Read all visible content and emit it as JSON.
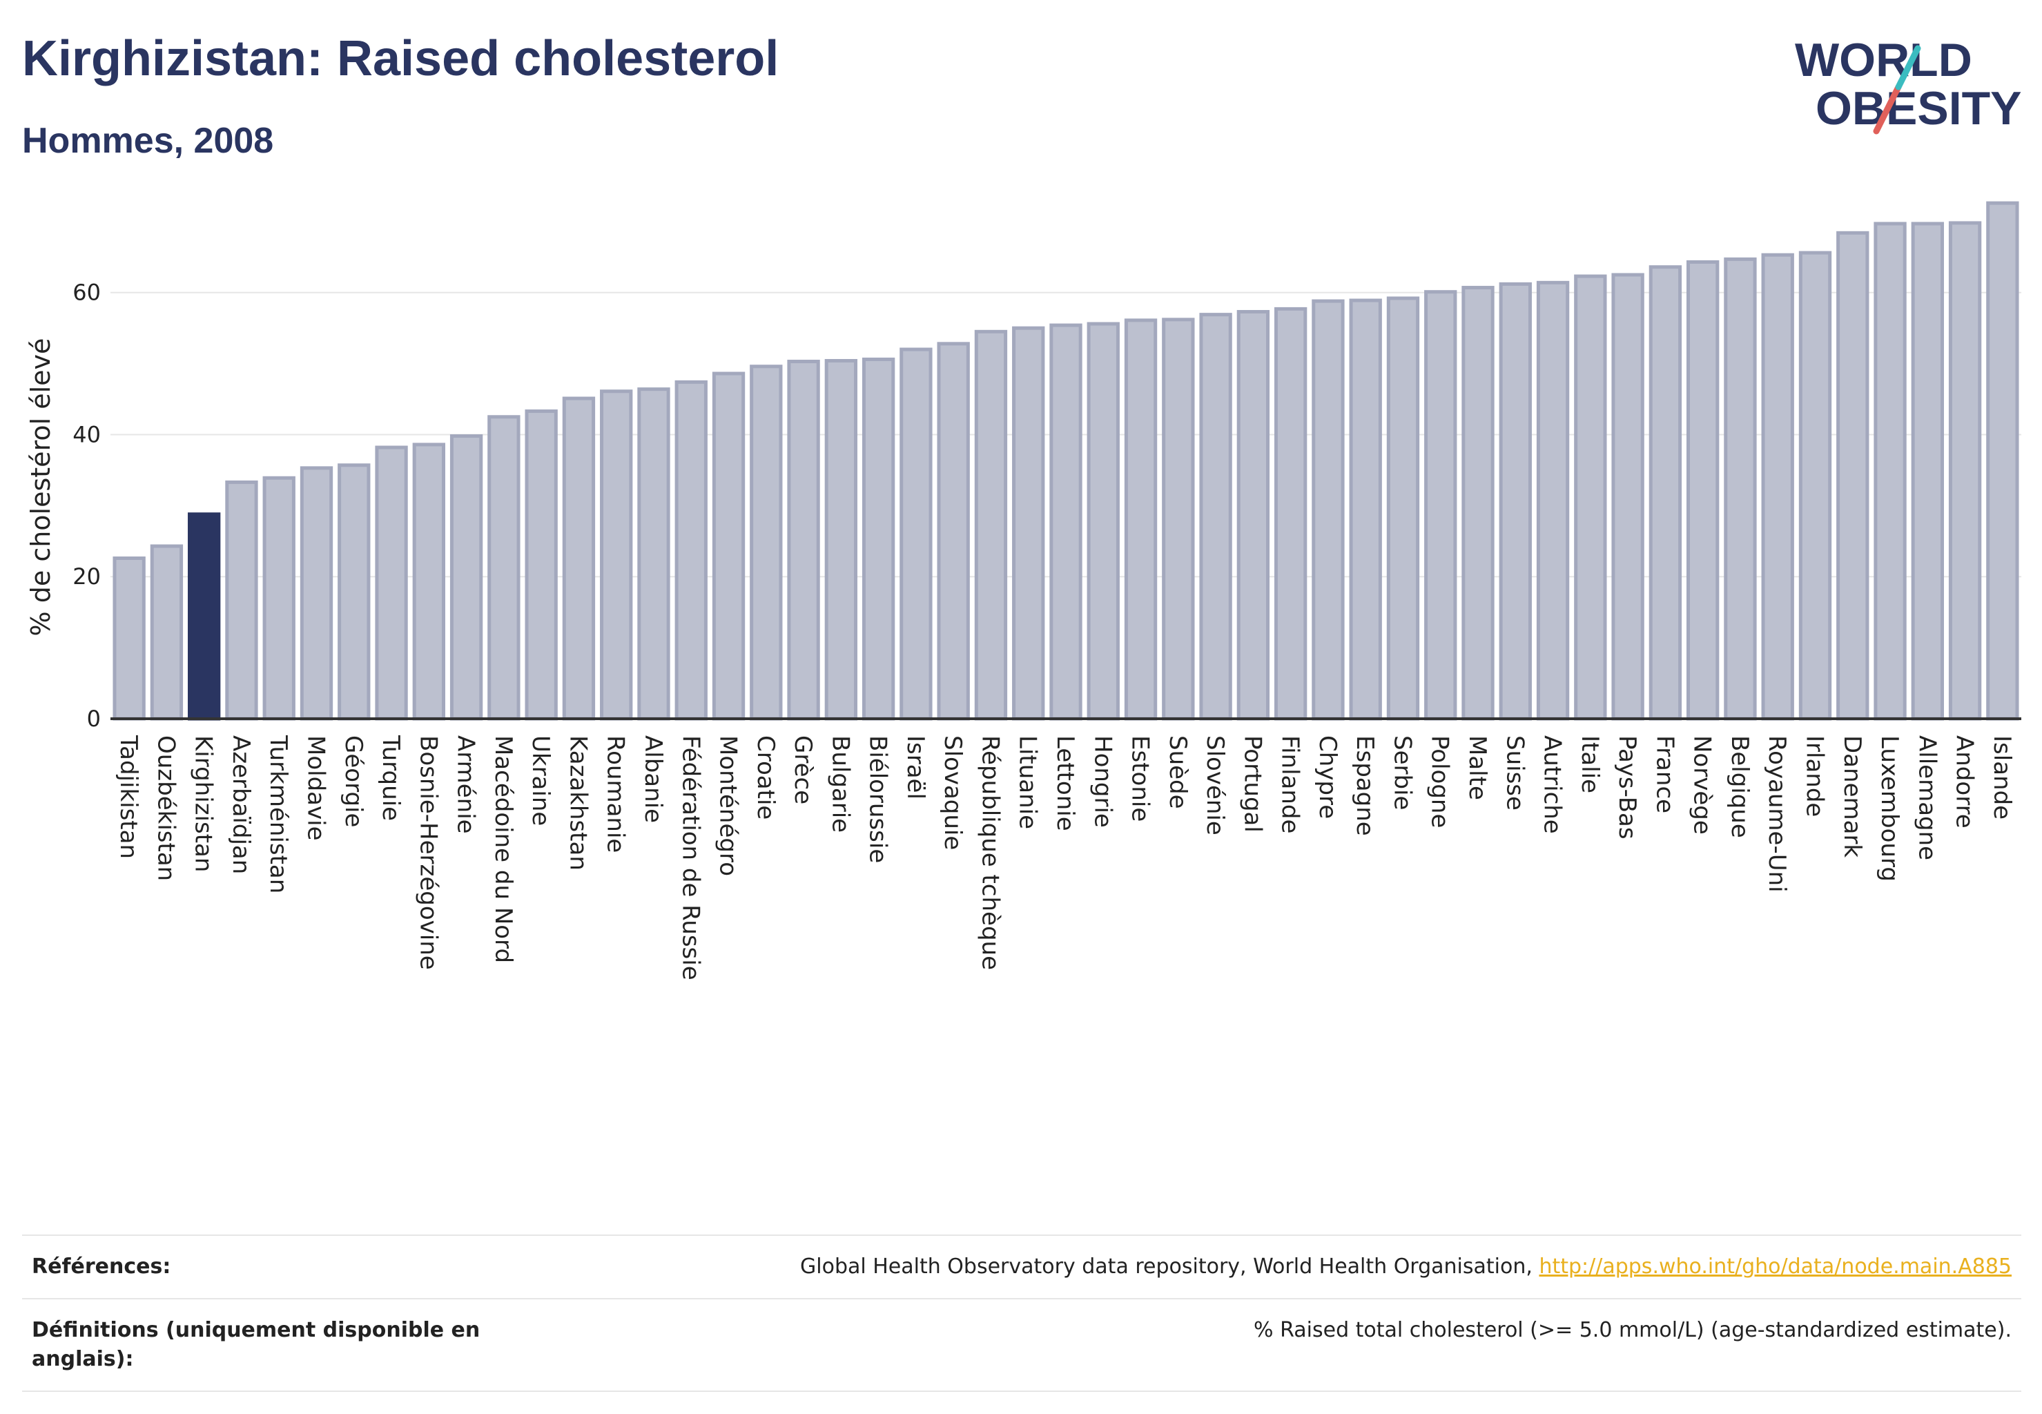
{
  "header": {
    "title": "Kirghizistan: Raised cholesterol",
    "subtitle": "Hommes, 2008"
  },
  "logo": {
    "line1": "WORLD",
    "line2": "OBESITY",
    "colors": [
      "#2a3561",
      "#e0605a",
      "#3bbcc0"
    ]
  },
  "footer": {
    "references_label": "Références:",
    "references_text": "Global Health Observatory data repository, World Health Organisation, ",
    "references_link": "http://apps.who.int/gho/data/node.main.A885",
    "definitions_label": "Définitions (uniquement disponible en anglais):",
    "definitions_text": "% Raised total cholesterol (>= 5.0 mmol/L) (age-standardized estimate)."
  },
  "chart_data": {
    "type": "bar",
    "title": "Kirghizistan: Raised cholesterol",
    "subtitle": "Hommes, 2008",
    "ylabel": "% de cholestérol élevé",
    "ylim": [
      0,
      73
    ],
    "yticks": [
      0,
      20,
      40,
      60
    ],
    "grid": true,
    "highlight": "Kirghizistan",
    "colors": {
      "bar": "#bcc0cf",
      "bar_edge": "#a3a8bd",
      "highlight": "#2a3561"
    },
    "categories": [
      "Tadjikistan",
      "Ouzbékistan",
      "Kirghizistan",
      "Azerbaïdjan",
      "Turkménistan",
      "Moldavie",
      "Géorgie",
      "Turquie",
      "Bosnie-Herzégovine",
      "Arménie",
      "Macédoine du Nord",
      "Ukraine",
      "Kazakhstan",
      "Roumanie",
      "Albanie",
      "Fédération de Russie",
      "Monténégro",
      "Croatie",
      "Grèce",
      "Bulgarie",
      "Biélorussie",
      "Israël",
      "Slovaquie",
      "République tchèque",
      "Lituanie",
      "Lettonie",
      "Hongrie",
      "Estonie",
      "Suède",
      "Slovénie",
      "Portugal",
      "Finlande",
      "Chypre",
      "Espagne",
      "Serbie",
      "Pologne",
      "Malte",
      "Suisse",
      "Autriche",
      "Italie",
      "Pays-Bas",
      "France",
      "Norvège",
      "Belgique",
      "Royaume-Uni",
      "Irlande",
      "Danemark",
      "Luxembourg",
      "Allemagne",
      "Andorre",
      "Islande"
    ],
    "values": [
      22.6,
      24.3,
      28.8,
      33.3,
      33.9,
      35.3,
      35.7,
      38.2,
      38.6,
      39.8,
      42.5,
      43.3,
      45.1,
      46.1,
      46.4,
      47.4,
      48.6,
      49.6,
      50.3,
      50.4,
      50.6,
      52.0,
      52.8,
      54.5,
      55.0,
      55.4,
      55.6,
      56.1,
      56.2,
      56.9,
      57.3,
      57.7,
      58.8,
      58.9,
      59.2,
      60.1,
      60.7,
      61.2,
      61.4,
      62.3,
      62.5,
      63.6,
      64.3,
      64.7,
      65.3,
      65.6,
      68.4,
      69.7,
      69.7,
      69.8,
      72.6
    ]
  }
}
